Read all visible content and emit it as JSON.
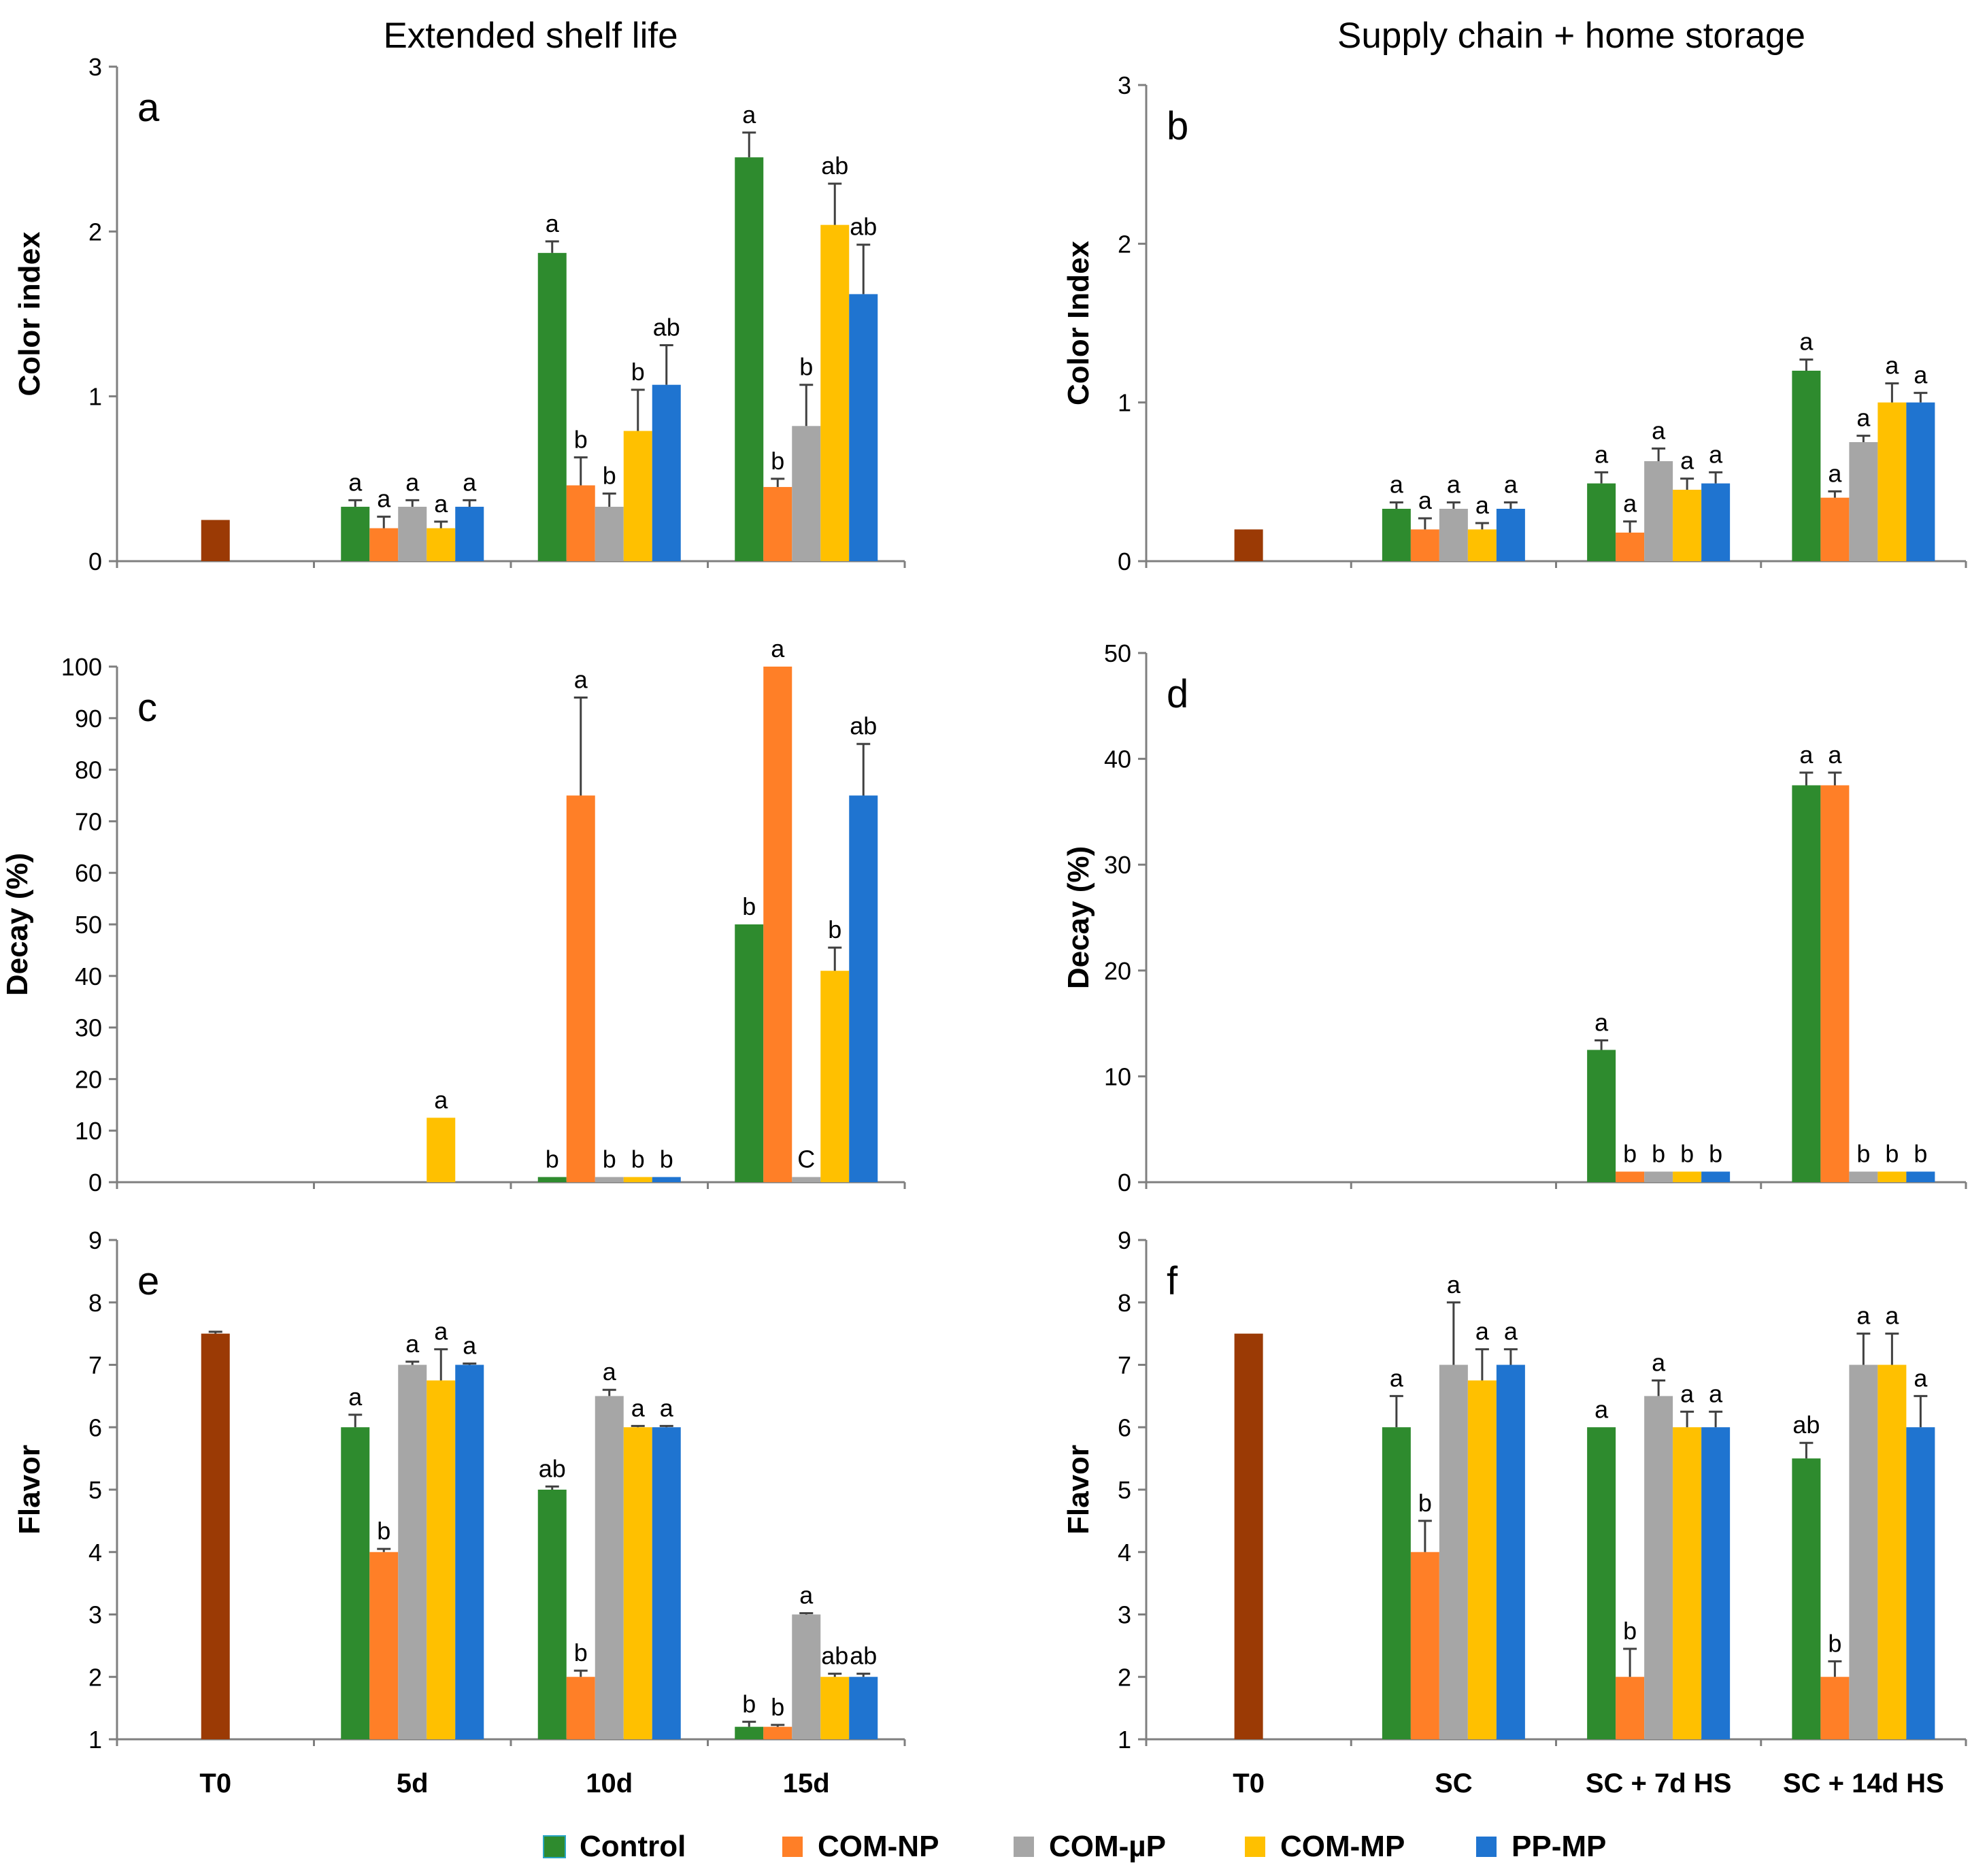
{
  "column_titles": [
    "Extended shelf life",
    "Supply chain + home storage"
  ],
  "legend": [
    {
      "name": "Control",
      "color": "#2E8B2E"
    },
    {
      "name": "COM-NP",
      "color": "#FF7F27"
    },
    {
      "name": "COM-µP",
      "color": "#A6A6A6"
    },
    {
      "name": "COM-MP",
      "color": "#FFC000"
    },
    {
      "name": "PP-MP",
      "color": "#1F74D0"
    }
  ],
  "colors": {
    "T0": "#9B3A05",
    "Control": "#2E8B2E",
    "COM-NP": "#FF7F27",
    "COM-µP": "#A6A6A6",
    "COM-MP": "#FFC000",
    "PP-MP": "#1F74D0"
  },
  "chart_data": [
    {
      "panel": "a",
      "type": "bar",
      "ylabel": "Color index",
      "ylim": [
        0,
        3
      ],
      "yticks": [
        0,
        1,
        2,
        3
      ],
      "categories": [
        "T0",
        "5d",
        "10d",
        "15d"
      ],
      "show_xlabels": false,
      "t0": {
        "value": 0.25,
        "err": 0
      },
      "series": [
        {
          "name": "Control",
          "values": [
            null,
            0.33,
            1.87,
            2.45
          ],
          "errors": [
            null,
            0.04,
            0.07,
            0.15
          ],
          "letters": [
            null,
            "a",
            "a",
            "a"
          ]
        },
        {
          "name": "COM-NP",
          "values": [
            null,
            0.2,
            0.46,
            0.45
          ],
          "errors": [
            null,
            0.07,
            0.17,
            0.05
          ],
          "letters": [
            null,
            "a",
            "b",
            "b"
          ]
        },
        {
          "name": "COM-µP",
          "values": [
            null,
            0.33,
            0.33,
            0.82
          ],
          "errors": [
            null,
            0.04,
            0.08,
            0.25
          ],
          "letters": [
            null,
            "a",
            "b",
            "b"
          ]
        },
        {
          "name": "COM-MP",
          "values": [
            null,
            0.2,
            0.79,
            2.04
          ],
          "errors": [
            null,
            0.04,
            0.25,
            0.25
          ],
          "letters": [
            null,
            "a",
            "b",
            "ab"
          ]
        },
        {
          "name": "PP-MP",
          "values": [
            null,
            0.33,
            1.07,
            1.62
          ],
          "errors": [
            null,
            0.04,
            0.24,
            0.3
          ],
          "letters": [
            null,
            "a",
            "ab",
            "ab"
          ]
        }
      ]
    },
    {
      "panel": "b",
      "type": "bar",
      "ylabel": "Color Index",
      "ylim": [
        0,
        3
      ],
      "yticks": [
        0,
        1,
        2,
        3
      ],
      "categories": [
        "T0",
        "SC",
        "SC + 7d HS",
        "SC + 14d HS"
      ],
      "show_xlabels": false,
      "t0": {
        "value": 0.2,
        "err": 0
      },
      "series": [
        {
          "name": "Control",
          "values": [
            null,
            0.33,
            0.49,
            1.2
          ],
          "errors": [
            null,
            0.04,
            0.07,
            0.07
          ],
          "letters": [
            null,
            "a",
            "a",
            "a"
          ]
        },
        {
          "name": "COM-NP",
          "values": [
            null,
            0.2,
            0.18,
            0.4
          ],
          "errors": [
            null,
            0.07,
            0.07,
            0.04
          ],
          "letters": [
            null,
            "a",
            "a",
            "a"
          ]
        },
        {
          "name": "COM-µP",
          "values": [
            null,
            0.33,
            0.63,
            0.75
          ],
          "errors": [
            null,
            0.04,
            0.08,
            0.04
          ],
          "letters": [
            null,
            "a",
            "a",
            "a"
          ]
        },
        {
          "name": "COM-MP",
          "values": [
            null,
            0.2,
            0.45,
            1.0
          ],
          "errors": [
            null,
            0.04,
            0.07,
            0.12
          ],
          "letters": [
            null,
            "a",
            "a",
            "a"
          ]
        },
        {
          "name": "PP-MP",
          "values": [
            null,
            0.33,
            0.49,
            1.0
          ],
          "errors": [
            null,
            0.04,
            0.07,
            0.06
          ],
          "letters": [
            null,
            "a",
            "a",
            "a"
          ]
        }
      ]
    },
    {
      "panel": "c",
      "type": "bar",
      "ylabel": "Decay (%)",
      "ylim": [
        0,
        100
      ],
      "yticks": [
        0,
        10,
        20,
        30,
        40,
        50,
        60,
        70,
        80,
        90,
        100
      ],
      "categories": [
        "T0",
        "5d",
        "10d",
        "15d"
      ],
      "show_xlabels": false,
      "t0": null,
      "series": [
        {
          "name": "Control",
          "values": [
            null,
            null,
            1,
            50
          ],
          "errors": [
            null,
            null,
            0,
            0
          ],
          "letters": [
            null,
            null,
            "b",
            "b"
          ]
        },
        {
          "name": "COM-NP",
          "values": [
            null,
            null,
            75,
            100
          ],
          "errors": [
            null,
            null,
            19,
            0
          ],
          "letters": [
            null,
            null,
            "a",
            "a"
          ]
        },
        {
          "name": "COM-µP",
          "values": [
            null,
            null,
            1,
            1
          ],
          "errors": [
            null,
            null,
            0,
            0
          ],
          "letters": [
            null,
            null,
            "b",
            "C"
          ]
        },
        {
          "name": "COM-MP",
          "values": [
            null,
            12.5,
            1,
            41
          ],
          "errors": [
            null,
            0,
            0,
            4.5
          ],
          "letters": [
            null,
            "a",
            "b",
            "b"
          ]
        },
        {
          "name": "PP-MP",
          "values": [
            null,
            null,
            1,
            75
          ],
          "errors": [
            null,
            null,
            0,
            10
          ],
          "letters": [
            null,
            null,
            "b",
            "ab"
          ]
        }
      ]
    },
    {
      "panel": "d",
      "type": "bar",
      "ylabel": "Decay (%)",
      "ylim": [
        0,
        50
      ],
      "yticks": [
        0,
        10,
        20,
        30,
        40,
        50
      ],
      "categories": [
        "T0",
        "SC",
        "SC + 7d HS",
        "SC + 14d HS"
      ],
      "show_xlabels": false,
      "t0": null,
      "series": [
        {
          "name": "Control",
          "values": [
            null,
            null,
            12.5,
            37.5
          ],
          "errors": [
            null,
            null,
            0.9,
            1.2
          ],
          "letters": [
            null,
            null,
            "a",
            "a"
          ]
        },
        {
          "name": "COM-NP",
          "values": [
            null,
            null,
            1,
            37.5
          ],
          "errors": [
            null,
            null,
            0,
            1.2
          ],
          "letters": [
            null,
            null,
            "b",
            "a"
          ]
        },
        {
          "name": "COM-µP",
          "values": [
            null,
            null,
            1,
            1
          ],
          "errors": [
            null,
            null,
            0,
            0
          ],
          "letters": [
            null,
            null,
            "b",
            "b"
          ]
        },
        {
          "name": "COM-MP",
          "values": [
            null,
            null,
            1,
            1
          ],
          "errors": [
            null,
            null,
            0,
            0
          ],
          "letters": [
            null,
            null,
            "b",
            "b"
          ]
        },
        {
          "name": "PP-MP",
          "values": [
            null,
            null,
            1,
            1
          ],
          "errors": [
            null,
            null,
            0,
            0
          ],
          "letters": [
            null,
            null,
            "b",
            "b"
          ]
        }
      ]
    },
    {
      "panel": "e",
      "type": "bar",
      "ylabel": "Flavor",
      "ylim": [
        1,
        9
      ],
      "yticks": [
        1,
        2,
        3,
        4,
        5,
        6,
        7,
        8,
        9
      ],
      "categories": [
        "T0",
        "5d",
        "10d",
        "15d"
      ],
      "show_xlabels": true,
      "t0": {
        "value": 7.5,
        "err": 0.03
      },
      "series": [
        {
          "name": "Control",
          "values": [
            null,
            6,
            5,
            1.2
          ],
          "errors": [
            null,
            0.2,
            0.05,
            0.08
          ],
          "letters": [
            null,
            "a",
            "ab",
            "b"
          ]
        },
        {
          "name": "COM-NP",
          "values": [
            null,
            4,
            2,
            1.2
          ],
          "errors": [
            null,
            0.05,
            0.1,
            0.03
          ],
          "letters": [
            null,
            "b",
            "b",
            "b"
          ]
        },
        {
          "name": "COM-µP",
          "values": [
            null,
            7,
            6.5,
            3
          ],
          "errors": [
            null,
            0.05,
            0.1,
            0.02
          ],
          "letters": [
            null,
            "a",
            "a",
            "a"
          ]
        },
        {
          "name": "COM-MP",
          "values": [
            null,
            6.75,
            6,
            2
          ],
          "errors": [
            null,
            0.5,
            0.02,
            0.05
          ],
          "letters": [
            null,
            "a",
            "a",
            "ab"
          ]
        },
        {
          "name": "PP-MP",
          "values": [
            null,
            7,
            6,
            2
          ],
          "errors": [
            null,
            0.02,
            0.02,
            0.05
          ],
          "letters": [
            null,
            "a",
            "a",
            "ab"
          ]
        }
      ]
    },
    {
      "panel": "f",
      "type": "bar",
      "ylabel": "Flavor",
      "ylim": [
        1,
        9
      ],
      "yticks": [
        1,
        2,
        3,
        4,
        5,
        6,
        7,
        8,
        9
      ],
      "categories": [
        "T0",
        "SC",
        "SC + 7d HS",
        "SC + 14d HS"
      ],
      "show_xlabels": true,
      "t0": {
        "value": 7.5,
        "err": 0
      },
      "series": [
        {
          "name": "Control",
          "values": [
            null,
            6,
            6,
            5.5
          ],
          "errors": [
            null,
            0.5,
            0,
            0.25
          ],
          "letters": [
            null,
            "a",
            "a",
            "ab"
          ]
        },
        {
          "name": "COM-NP",
          "values": [
            null,
            4,
            2,
            2
          ],
          "errors": [
            null,
            0.5,
            0.45,
            0.25
          ],
          "letters": [
            null,
            "b",
            "b",
            "b"
          ]
        },
        {
          "name": "COM-µP",
          "values": [
            null,
            7,
            6.5,
            7
          ],
          "errors": [
            null,
            1.0,
            0.25,
            0.5
          ],
          "letters": [
            null,
            "a",
            "a",
            "a"
          ]
        },
        {
          "name": "COM-MP",
          "values": [
            null,
            6.75,
            6,
            7
          ],
          "errors": [
            null,
            0.5,
            0.25,
            0.5
          ],
          "letters": [
            null,
            "a",
            "a",
            "a"
          ]
        },
        {
          "name": "PP-MP",
          "values": [
            null,
            7,
            6,
            6
          ],
          "errors": [
            null,
            0.25,
            0.25,
            0.5
          ],
          "letters": [
            null,
            "a",
            "a",
            "a"
          ]
        }
      ]
    }
  ]
}
